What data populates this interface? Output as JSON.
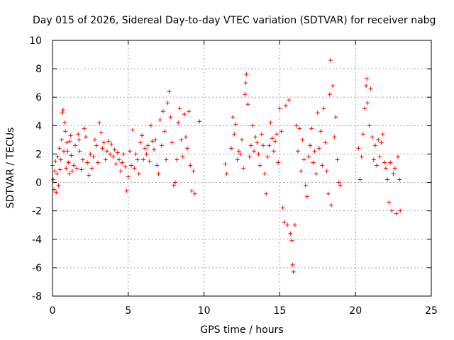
{
  "chart_data": {
    "type": "scatter",
    "title": "Day 015 of 2026, Sidereal Day-to-day VTEC variation (SDTVAR) for receiver nabg",
    "xlabel": "GPS time / hours",
    "ylabel": "SDTVAR / TECUs",
    "xlim": [
      0,
      25
    ],
    "ylim": [
      -8,
      10
    ],
    "xticks": [
      0,
      5,
      10,
      15,
      20,
      25
    ],
    "yticks": [
      -8,
      -6,
      -4,
      -2,
      0,
      2,
      4,
      6,
      8,
      10
    ],
    "grid": true,
    "marker": "+",
    "series_color": "#ff0000",
    "series": [
      {
        "name": "SDTVAR",
        "points": [
          [
            0.0,
            1.2
          ],
          [
            0.05,
            0.2
          ],
          [
            0.1,
            -0.5
          ],
          [
            0.15,
            0.8
          ],
          [
            0.2,
            1.5
          ],
          [
            0.25,
            -0.7
          ],
          [
            0.3,
            0.6
          ],
          [
            0.35,
            1.8
          ],
          [
            0.4,
            -0.2
          ],
          [
            0.45,
            2.4
          ],
          [
            0.5,
            0.9
          ],
          [
            0.55,
            1.6
          ],
          [
            0.6,
            3.0
          ],
          [
            0.65,
            4.9
          ],
          [
            0.7,
            5.1
          ],
          [
            0.75,
            2.2
          ],
          [
            0.8,
            4.2
          ],
          [
            0.85,
            3.6
          ],
          [
            0.9,
            1.0
          ],
          [
            0.95,
            2.8
          ],
          [
            1.0,
            2.2
          ],
          [
            1.05,
            1.4
          ],
          [
            1.1,
            0.6
          ],
          [
            1.15,
            2.9
          ],
          [
            1.2,
            3.3
          ],
          [
            1.25,
            1.9
          ],
          [
            1.3,
            0.8
          ],
          [
            1.4,
            1.2
          ],
          [
            1.5,
            2.6
          ],
          [
            1.6,
            1.0
          ],
          [
            1.7,
            3.4
          ],
          [
            1.75,
            3.0
          ],
          [
            1.8,
            2.2
          ],
          [
            1.9,
            0.9
          ],
          [
            2.0,
            1.6
          ],
          [
            2.1,
            3.8
          ],
          [
            2.2,
            3.2
          ],
          [
            2.3,
            1.4
          ],
          [
            2.4,
            0.5
          ],
          [
            2.5,
            2.0
          ],
          [
            2.6,
            1.0
          ],
          [
            2.7,
            1.8
          ],
          [
            2.8,
            3.0
          ],
          [
            2.9,
            2.6
          ],
          [
            3.0,
            1.4
          ],
          [
            3.1,
            4.2
          ],
          [
            3.2,
            3.5
          ],
          [
            3.3,
            2.4
          ],
          [
            3.4,
            2.8
          ],
          [
            3.5,
            1.6
          ],
          [
            3.6,
            2.2
          ],
          [
            3.7,
            2.9
          ],
          [
            3.8,
            2.0
          ],
          [
            3.9,
            2.7
          ],
          [
            4.0,
            1.8
          ],
          [
            4.1,
            2.3
          ],
          [
            4.2,
            1.3
          ],
          [
            4.3,
            2.1
          ],
          [
            4.4,
            1.6
          ],
          [
            4.5,
            0.8
          ],
          [
            4.6,
            1.4
          ],
          [
            4.7,
            2.0
          ],
          [
            4.8,
            1.1
          ],
          [
            4.9,
            -0.6
          ],
          [
            5.0,
            0.4
          ],
          [
            5.1,
            2.2
          ],
          [
            5.2,
            1.2
          ],
          [
            5.3,
            3.7
          ],
          [
            5.4,
            1.0
          ],
          [
            5.5,
            2.0
          ],
          [
            5.6,
            1.6
          ],
          [
            5.7,
            0.6
          ],
          [
            5.8,
            2.8
          ],
          [
            5.9,
            3.3
          ],
          [
            6.0,
            1.6
          ],
          [
            6.1,
            2.4
          ],
          [
            6.2,
            2.0
          ],
          [
            6.3,
            2.6
          ],
          [
            6.4,
            1.5
          ],
          [
            6.5,
            4.0
          ],
          [
            6.6,
            2.9
          ],
          [
            6.7,
            2.3
          ],
          [
            6.8,
            3.0
          ],
          [
            6.9,
            1.2
          ],
          [
            7.0,
            0.6
          ],
          [
            7.1,
            4.4
          ],
          [
            7.2,
            2.6
          ],
          [
            7.3,
            5.0
          ],
          [
            7.4,
            3.6
          ],
          [
            7.5,
            1.6
          ],
          [
            7.6,
            5.6
          ],
          [
            7.7,
            6.4
          ],
          [
            7.8,
            4.6
          ],
          [
            7.9,
            2.8
          ],
          [
            8.0,
            -0.2
          ],
          [
            8.1,
            0.0
          ],
          [
            8.2,
            1.6
          ],
          [
            8.3,
            4.2
          ],
          [
            8.4,
            5.2
          ],
          [
            8.5,
            3.0
          ],
          [
            8.6,
            1.8
          ],
          [
            8.7,
            4.8
          ],
          [
            8.8,
            3.2
          ],
          [
            8.9,
            2.4
          ],
          [
            9.0,
            5.0
          ],
          [
            9.1,
            1.2
          ],
          [
            9.2,
            -0.6
          ],
          [
            9.3,
            0.8
          ],
          [
            9.4,
            -0.8
          ],
          [
            9.7,
            4.3
          ],
          [
            11.4,
            1.3
          ],
          [
            11.5,
            0.6
          ],
          [
            11.8,
            2.4
          ],
          [
            11.9,
            4.6
          ],
          [
            12.0,
            3.4
          ],
          [
            12.1,
            4.1
          ],
          [
            12.2,
            1.6
          ],
          [
            12.3,
            2.2
          ],
          [
            12.4,
            2.0
          ],
          [
            12.5,
            3.0
          ],
          [
            12.6,
            1.0
          ],
          [
            12.7,
            6.2
          ],
          [
            12.75,
            7.0
          ],
          [
            12.8,
            7.6
          ],
          [
            12.9,
            5.5
          ],
          [
            13.0,
            1.8
          ],
          [
            13.1,
            2.6
          ],
          [
            13.2,
            4.0
          ],
          [
            13.3,
            2.2
          ],
          [
            13.4,
            3.2
          ],
          [
            13.5,
            2.8
          ],
          [
            13.6,
            2.0
          ],
          [
            13.7,
            1.2
          ],
          [
            13.8,
            3.4
          ],
          [
            13.9,
            2.6
          ],
          [
            14.0,
            0.6
          ],
          [
            14.1,
            -0.8
          ],
          [
            14.2,
            1.8
          ],
          [
            14.3,
            2.6
          ],
          [
            14.4,
            4.2
          ],
          [
            14.5,
            3.1
          ],
          [
            14.6,
            2.2
          ],
          [
            14.7,
            2.9
          ],
          [
            14.8,
            3.4
          ],
          [
            14.9,
            1.4
          ],
          [
            15.0,
            5.2
          ],
          [
            15.1,
            3.6
          ],
          [
            15.2,
            -1.8
          ],
          [
            15.3,
            -2.8
          ],
          [
            15.4,
            5.4
          ],
          [
            15.5,
            -3.0
          ],
          [
            15.6,
            5.8
          ],
          [
            15.7,
            -3.6
          ],
          [
            15.8,
            -4.1
          ],
          [
            15.85,
            -5.8
          ],
          [
            15.9,
            -6.3
          ],
          [
            16.0,
            -3.0
          ],
          [
            16.1,
            4.0
          ],
          [
            16.2,
            2.2
          ],
          [
            16.3,
            3.8
          ],
          [
            16.4,
            0.8
          ],
          [
            16.5,
            3.0
          ],
          [
            16.6,
            1.6
          ],
          [
            16.7,
            -0.2
          ],
          [
            16.8,
            -1.0
          ],
          [
            16.9,
            1.8
          ],
          [
            17.0,
            2.6
          ],
          [
            17.1,
            3.8
          ],
          [
            17.2,
            1.4
          ],
          [
            17.3,
            2.2
          ],
          [
            17.4,
            0.6
          ],
          [
            17.5,
            4.9
          ],
          [
            17.6,
            2.4
          ],
          [
            17.7,
            3.6
          ],
          [
            17.8,
            1.2
          ],
          [
            17.9,
            5.2
          ],
          [
            18.0,
            2.8
          ],
          [
            18.1,
            0.8
          ],
          [
            18.2,
            -0.8
          ],
          [
            18.3,
            6.2
          ],
          [
            18.35,
            8.6
          ],
          [
            18.4,
            -1.6
          ],
          [
            18.5,
            6.8
          ],
          [
            18.6,
            3.2
          ],
          [
            18.7,
            4.6
          ],
          [
            18.8,
            1.6
          ],
          [
            18.9,
            0.0
          ],
          [
            19.0,
            -0.2
          ],
          [
            20.2,
            2.4
          ],
          [
            20.3,
            0.2
          ],
          [
            20.4,
            1.8
          ],
          [
            20.5,
            3.4
          ],
          [
            20.6,
            5.2
          ],
          [
            20.7,
            6.8
          ],
          [
            20.75,
            7.3
          ],
          [
            20.8,
            5.6
          ],
          [
            20.9,
            4.0
          ],
          [
            21.0,
            6.6
          ],
          [
            21.1,
            3.2
          ],
          [
            21.2,
            1.6
          ],
          [
            21.3,
            2.6
          ],
          [
            21.4,
            1.2
          ],
          [
            21.5,
            3.0
          ],
          [
            21.6,
            1.8
          ],
          [
            21.7,
            2.8
          ],
          [
            21.8,
            3.4
          ],
          [
            21.9,
            1.4
          ],
          [
            22.0,
            1.0
          ],
          [
            22.1,
            0.2
          ],
          [
            22.2,
            -1.4
          ],
          [
            22.3,
            1.4
          ],
          [
            22.4,
            -2.0
          ],
          [
            22.5,
            0.6
          ],
          [
            22.6,
            1.0
          ],
          [
            22.7,
            -2.2
          ],
          [
            22.8,
            1.8
          ],
          [
            22.9,
            0.2
          ],
          [
            22.95,
            -2.0
          ]
        ]
      }
    ]
  }
}
